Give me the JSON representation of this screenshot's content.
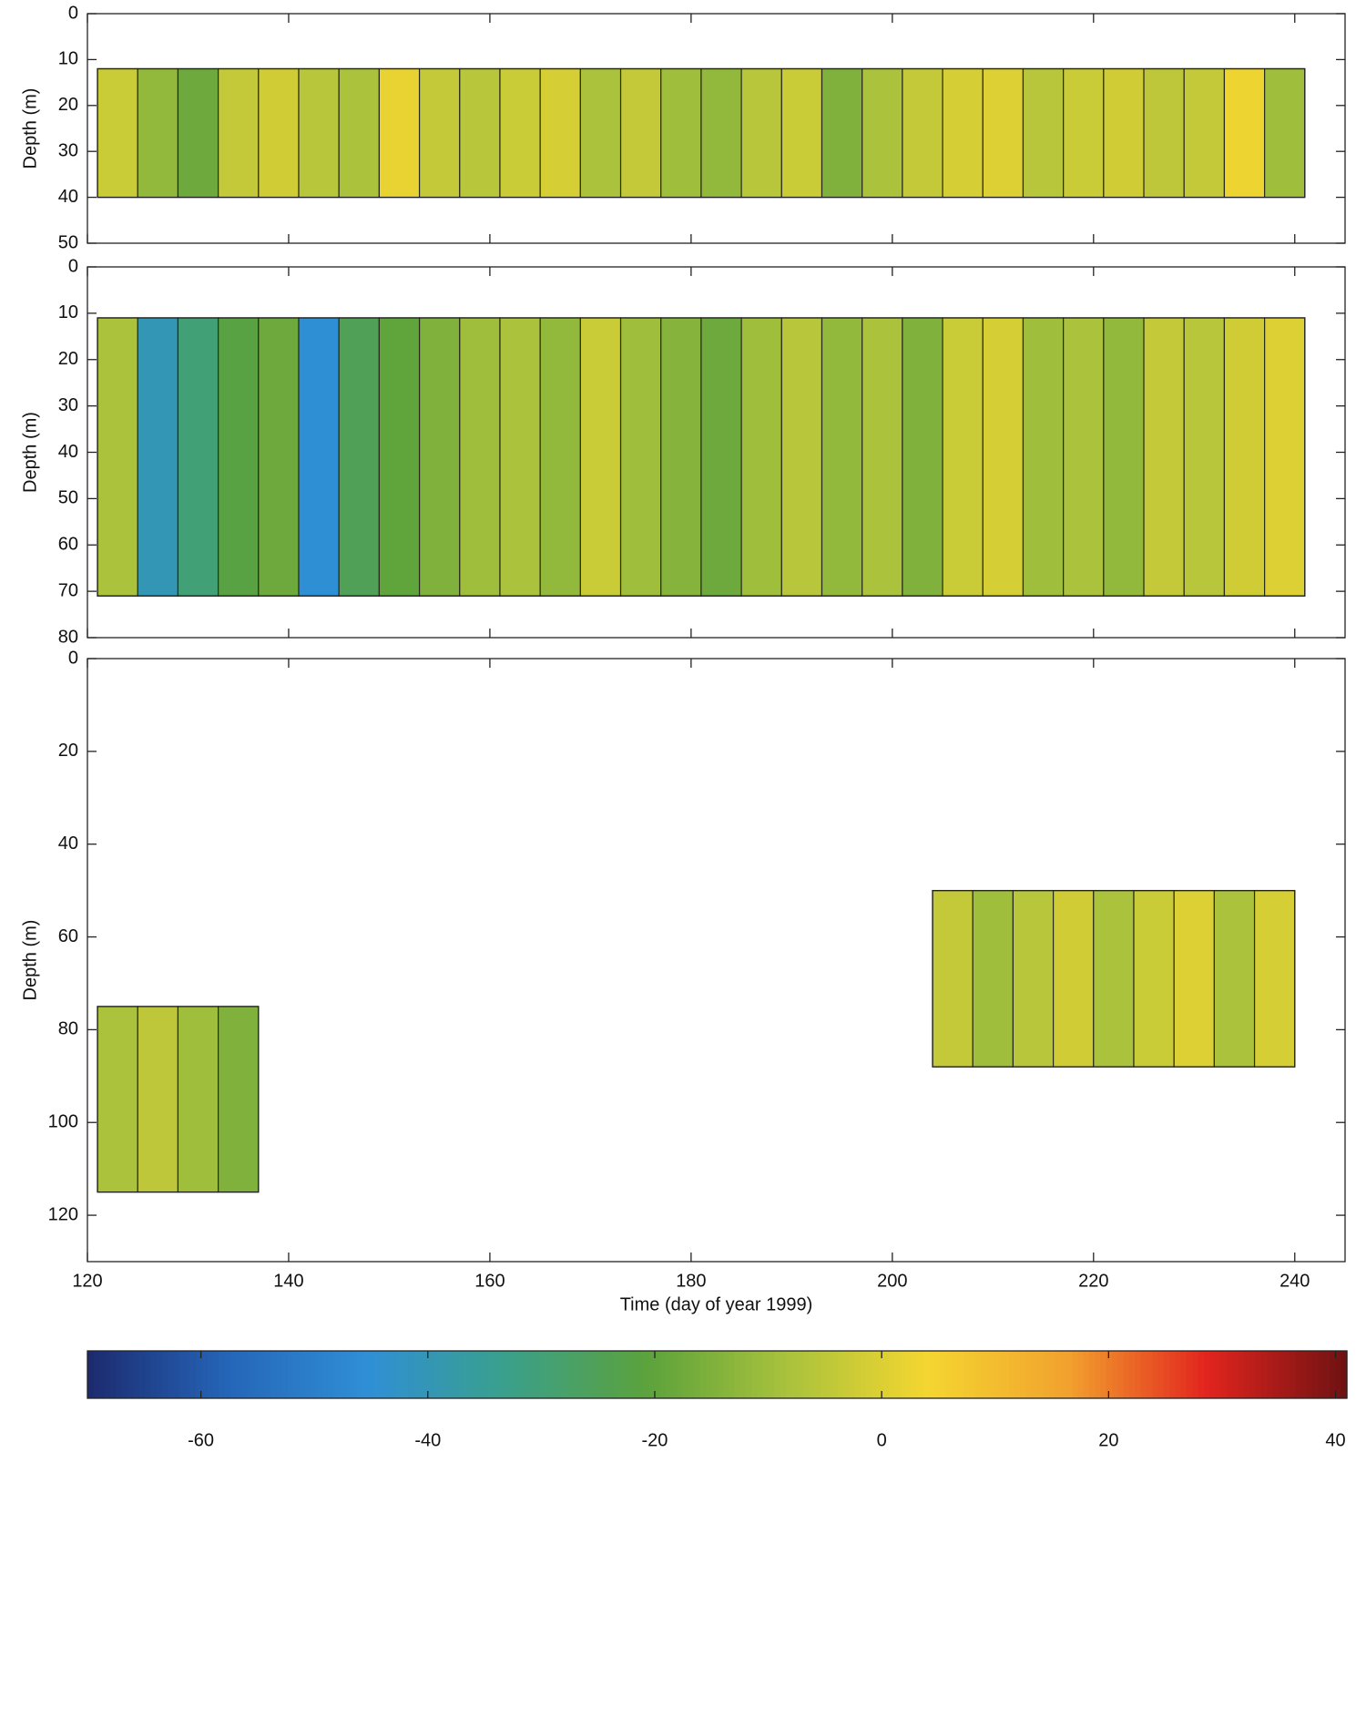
{
  "chart_data": [
    {
      "type": "contour",
      "ylabel": "Depth (m)",
      "xlim": [
        120,
        245
      ],
      "xticks": [
        120,
        140,
        160,
        180,
        200,
        220,
        240
      ],
      "ylim": [
        50,
        0
      ],
      "yticks": [
        0,
        10,
        20,
        30,
        40,
        50
      ],
      "blocks": [
        {
          "depth": [
            12,
            40
          ],
          "x": [
            123,
            127,
            131,
            135,
            139,
            143,
            147,
            151,
            155,
            159,
            163,
            167,
            171,
            175,
            179,
            183,
            187,
            191,
            195,
            199,
            203,
            207,
            211,
            215,
            219,
            223,
            227,
            231,
            235,
            239
          ],
          "values": [
            -3,
            -12,
            -18,
            -4,
            -2,
            -6,
            -8,
            2,
            -4,
            -6,
            -3,
            -1,
            -8,
            -4,
            -10,
            -12,
            -6,
            -3,
            -15,
            -8,
            -4,
            -1,
            0,
            -6,
            -3,
            -2,
            -5,
            -4,
            3,
            -10
          ]
        }
      ]
    },
    {
      "type": "contour",
      "ylabel": "Depth (m)",
      "xlim": [
        120,
        245
      ],
      "xticks": [
        120,
        140,
        160,
        180,
        200,
        220,
        240
      ],
      "ylim": [
        80,
        0
      ],
      "yticks": [
        0,
        10,
        20,
        30,
        40,
        50,
        60,
        70,
        80
      ],
      "blocks": [
        {
          "depth": [
            11,
            71
          ],
          "x": [
            123,
            127,
            131,
            135,
            139,
            143,
            147,
            151,
            155,
            159,
            163,
            167,
            171,
            175,
            179,
            183,
            187,
            191,
            195,
            199,
            203,
            207,
            211,
            215,
            219,
            223,
            227,
            231,
            235,
            239
          ],
          "values": [
            -8,
            -40,
            -30,
            -22,
            -18,
            -45,
            -25,
            -20,
            -15,
            -10,
            -8,
            -12,
            -3,
            -10,
            -14,
            -18,
            -10,
            -6,
            -12,
            -8,
            -15,
            -3,
            -1,
            -10,
            -8,
            -12,
            -4,
            -6,
            -2,
            0
          ]
        }
      ]
    },
    {
      "type": "contour",
      "ylabel": "Depth (m)",
      "xlabel": "Time (day of year 1999)",
      "xlim": [
        120,
        245
      ],
      "xticks": [
        120,
        140,
        160,
        180,
        200,
        220,
        240
      ],
      "ylim": [
        130,
        0
      ],
      "yticks": [
        0,
        20,
        40,
        60,
        80,
        100,
        120
      ],
      "blocks": [
        {
          "depth": [
            75,
            115
          ],
          "x": [
            123,
            127,
            131,
            135
          ],
          "values": [
            -8,
            -5,
            -10,
            -15
          ]
        },
        {
          "depth": [
            50,
            88
          ],
          "x": [
            206,
            210,
            214,
            218,
            222,
            226,
            230,
            234,
            238
          ],
          "values": [
            -4,
            -10,
            -6,
            -2,
            -8,
            -3,
            0,
            -8,
            -1
          ]
        }
      ]
    },
    {
      "type": "colorbar",
      "xlim": [
        -70,
        41
      ],
      "xticks": [
        -60,
        -40,
        -20,
        0,
        20,
        40
      ],
      "colormap": [
        "#1c2a6e",
        "#2565b8",
        "#2f8fd6",
        "#3aa08a",
        "#5ca23c",
        "#a9c23c",
        "#f4d630",
        "#f2a22e",
        "#e2241e",
        "#6e1212"
      ]
    }
  ]
}
